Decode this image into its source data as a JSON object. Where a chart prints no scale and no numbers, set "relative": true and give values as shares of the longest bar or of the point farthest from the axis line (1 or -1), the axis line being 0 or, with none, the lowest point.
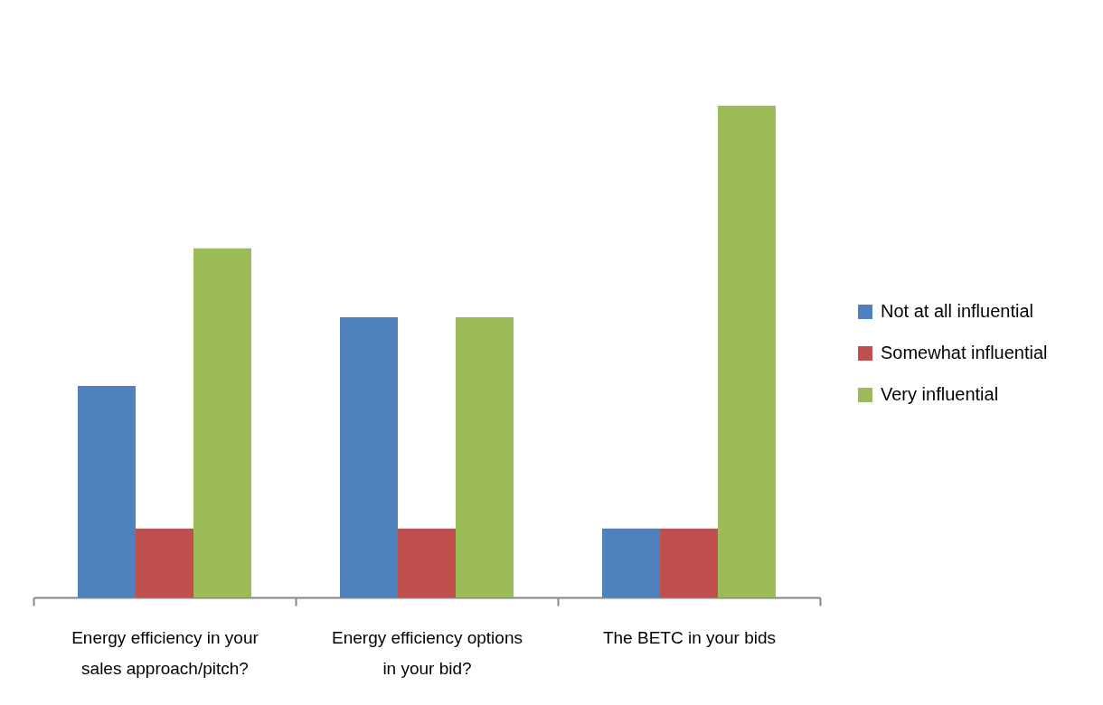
{
  "chart_data": {
    "type": "bar",
    "relative": true,
    "categories": [
      "Energy efficiency in your sales approach/pitch?",
      "Energy efficiency options in your bid?",
      "The BETC in your bids"
    ],
    "series": [
      {
        "name": "Not at all influential",
        "color": "#4f81bd",
        "values": [
          0.43,
          0.57,
          0.14
        ]
      },
      {
        "name": "Somewhat influential",
        "color": "#c0504d",
        "values": [
          0.14,
          0.14,
          0.14
        ]
      },
      {
        "name": "Very influential",
        "color": "#9bbb59",
        "values": [
          0.71,
          0.57,
          1
        ]
      }
    ],
    "legend": "right"
  }
}
